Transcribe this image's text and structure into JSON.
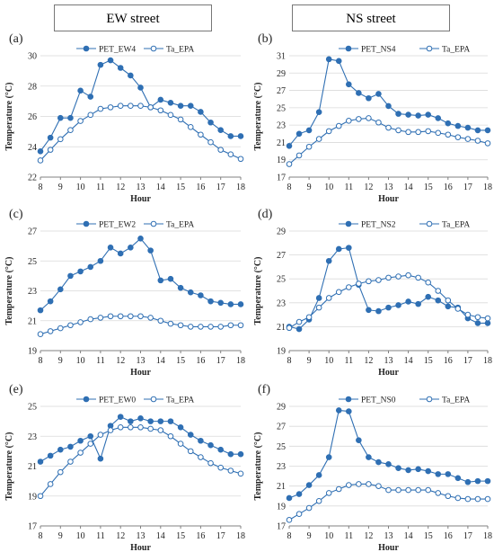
{
  "headers": {
    "left": "EW street",
    "right": "NS street"
  },
  "colors": {
    "series": "#2f6fb3",
    "axis": "#808080",
    "grid": "#d9d9d9",
    "text": "#222222"
  },
  "chart_data": [
    {
      "type": "line",
      "panel": "(a)",
      "xlabel": "Hour",
      "ylabel": "Temperature (°C)",
      "xlim": [
        8,
        18
      ],
      "ylim": [
        22,
        30
      ],
      "yticks": [
        22,
        24,
        26,
        28,
        30
      ],
      "xticks": [
        8,
        9,
        10,
        11,
        12,
        13,
        14,
        15,
        16,
        17,
        18
      ],
      "legend_placement": "top",
      "x": [
        8,
        8.5,
        9,
        9.5,
        10,
        10.5,
        11,
        11.5,
        12,
        12.5,
        13,
        13.5,
        14,
        14.5,
        15,
        15.5,
        16,
        16.5,
        17,
        17.5,
        18
      ],
      "series": [
        {
          "name": "PET_EW4",
          "marker": "filled",
          "values": [
            23.7,
            24.6,
            25.9,
            25.9,
            27.7,
            27.3,
            29.4,
            29.7,
            29.2,
            28.7,
            27.9,
            26.6,
            27.1,
            26.9,
            26.7,
            26.7,
            26.3,
            25.6,
            25.1,
            24.7,
            24.7
          ]
        },
        {
          "name": "Ta_EPA",
          "marker": "open",
          "values": [
            23.1,
            23.8,
            24.5,
            25.1,
            25.7,
            26.1,
            26.5,
            26.6,
            26.7,
            26.7,
            26.7,
            26.6,
            26.4,
            26.1,
            25.8,
            25.3,
            24.8,
            24.3,
            23.8,
            23.5,
            23.2
          ]
        }
      ]
    },
    {
      "type": "line",
      "panel": "(b)",
      "xlabel": "Hour",
      "ylabel": "Temperature (°C)",
      "xlim": [
        8,
        18
      ],
      "ylim": [
        17,
        31
      ],
      "yticks": [
        17,
        19,
        21,
        23,
        25,
        27,
        29,
        31
      ],
      "xticks": [
        8,
        9,
        10,
        11,
        12,
        13,
        14,
        15,
        16,
        17,
        18
      ],
      "legend_placement": "top",
      "x": [
        8,
        8.5,
        9,
        9.5,
        10,
        10.5,
        11,
        11.5,
        12,
        12.5,
        13,
        13.5,
        14,
        14.5,
        15,
        15.5,
        16,
        16.5,
        17,
        17.5,
        18
      ],
      "series": [
        {
          "name": "PET_NS4",
          "marker": "filled",
          "values": [
            20.6,
            22.0,
            22.4,
            24.5,
            30.6,
            30.4,
            27.7,
            26.7,
            26.1,
            26.6,
            25.2,
            24.3,
            24.2,
            24.1,
            24.2,
            23.8,
            23.2,
            22.9,
            22.7,
            22.4,
            22.4
          ]
        },
        {
          "name": "Ta_EPA",
          "marker": "open",
          "values": [
            18.5,
            19.5,
            20.5,
            21.4,
            22.3,
            22.9,
            23.5,
            23.7,
            23.8,
            23.3,
            22.7,
            22.4,
            22.2,
            22.2,
            22.3,
            22.1,
            21.9,
            21.6,
            21.4,
            21.2,
            20.9
          ]
        }
      ]
    },
    {
      "type": "line",
      "panel": "(c)",
      "xlabel": "Hour",
      "ylabel": "Temperature (°C)",
      "xlim": [
        8,
        18
      ],
      "ylim": [
        19,
        27
      ],
      "yticks": [
        19,
        21,
        23,
        25,
        27
      ],
      "xticks": [
        8,
        9,
        10,
        11,
        12,
        13,
        14,
        15,
        16,
        17,
        18
      ],
      "legend_placement": "top",
      "x": [
        8,
        8.5,
        9,
        9.5,
        10,
        10.5,
        11,
        11.5,
        12,
        12.5,
        13,
        13.5,
        14,
        14.5,
        15,
        15.5,
        16,
        16.5,
        17,
        17.5,
        18
      ],
      "series": [
        {
          "name": "PET_EW2",
          "marker": "filled",
          "values": [
            21.7,
            22.3,
            23.1,
            24.0,
            24.3,
            24.6,
            25.0,
            25.9,
            25.5,
            25.9,
            26.5,
            25.7,
            23.7,
            23.8,
            23.2,
            22.9,
            22.7,
            22.3,
            22.2,
            22.1,
            22.1
          ]
        },
        {
          "name": "Ta_EPA",
          "marker": "open",
          "values": [
            20.1,
            20.3,
            20.5,
            20.7,
            20.9,
            21.1,
            21.2,
            21.3,
            21.3,
            21.3,
            21.3,
            21.2,
            21.0,
            20.8,
            20.7,
            20.6,
            20.6,
            20.6,
            20.6,
            20.7,
            20.7
          ]
        }
      ]
    },
    {
      "type": "line",
      "panel": "(d)",
      "xlabel": "Hour",
      "ylabel": "Temperature (°C)",
      "xlim": [
        8,
        18
      ],
      "ylim": [
        19,
        29
      ],
      "yticks": [
        19,
        21,
        23,
        25,
        27,
        29
      ],
      "xticks": [
        8,
        9,
        10,
        11,
        12,
        13,
        14,
        15,
        16,
        17,
        18
      ],
      "legend_placement": "top",
      "x": [
        8,
        8.5,
        9,
        9.5,
        10,
        10.5,
        11,
        11.5,
        12,
        12.5,
        13,
        13.5,
        14,
        14.5,
        15,
        15.5,
        16,
        16.5,
        17,
        17.5,
        18
      ],
      "series": [
        {
          "name": "PET_NS2",
          "marker": "filled",
          "values": [
            21.0,
            20.8,
            21.6,
            23.4,
            26.5,
            27.5,
            27.6,
            24.5,
            22.4,
            22.3,
            22.6,
            22.8,
            23.1,
            22.9,
            23.5,
            23.2,
            22.7,
            22.6,
            21.7,
            21.3,
            21.3
          ]
        },
        {
          "name": "Ta_EPA",
          "marker": "open",
          "values": [
            20.9,
            21.4,
            21.8,
            22.6,
            23.4,
            23.9,
            24.3,
            24.6,
            24.8,
            24.9,
            25.1,
            25.2,
            25.3,
            25.1,
            24.7,
            24.0,
            23.2,
            22.5,
            22.0,
            21.8,
            21.7
          ]
        }
      ]
    },
    {
      "type": "line",
      "panel": "(e)",
      "xlabel": "Hour",
      "ylabel": "Temperature (°C)",
      "xlim": [
        8,
        18
      ],
      "ylim": [
        17,
        25
      ],
      "yticks": [
        17,
        19,
        21,
        23,
        25
      ],
      "xticks": [
        8,
        9,
        10,
        11,
        12,
        13,
        14,
        15,
        16,
        17,
        18
      ],
      "legend_placement": "top",
      "x": [
        8,
        8.5,
        9,
        9.5,
        10,
        10.5,
        11,
        11.5,
        12,
        12.5,
        13,
        13.5,
        14,
        14.5,
        15,
        15.5,
        16,
        16.5,
        17,
        17.5,
        18
      ],
      "series": [
        {
          "name": "PET_EW0",
          "marker": "filled",
          "values": [
            21.3,
            21.7,
            22.1,
            22.3,
            22.7,
            23.0,
            21.5,
            23.7,
            24.3,
            24.0,
            24.2,
            24.0,
            24.0,
            24.0,
            23.6,
            23.1,
            22.7,
            22.4,
            22.1,
            21.8,
            21.8
          ]
        },
        {
          "name": "Ta_EPA",
          "marker": "open",
          "values": [
            19.0,
            19.8,
            20.6,
            21.3,
            21.9,
            22.5,
            23.1,
            23.4,
            23.6,
            23.6,
            23.6,
            23.5,
            23.4,
            23.0,
            22.5,
            22.0,
            21.6,
            21.2,
            20.9,
            20.7,
            20.5
          ]
        }
      ]
    },
    {
      "type": "line",
      "panel": "(f)",
      "xlabel": "Hour",
      "ylabel": "Temperature (°C)",
      "xlim": [
        8,
        18
      ],
      "ylim": [
        17,
        29
      ],
      "yticks": [
        17,
        19,
        21,
        23,
        25,
        27,
        29
      ],
      "xticks": [
        8,
        9,
        10,
        11,
        12,
        13,
        14,
        15,
        16,
        17,
        18
      ],
      "legend_placement": "top",
      "x": [
        8,
        8.5,
        9,
        9.5,
        10,
        10.5,
        11,
        11.5,
        12,
        12.5,
        13,
        13.5,
        14,
        14.5,
        15,
        15.5,
        16,
        16.5,
        17,
        17.5,
        18
      ],
      "series": [
        {
          "name": "PET_NS0",
          "marker": "filled",
          "values": [
            19.8,
            20.2,
            21.1,
            22.1,
            23.9,
            28.6,
            28.5,
            25.6,
            23.9,
            23.4,
            23.2,
            22.8,
            22.6,
            22.7,
            22.5,
            22.2,
            22.2,
            21.8,
            21.4,
            21.5,
            21.5
          ]
        },
        {
          "name": "Ta_EPA",
          "marker": "open",
          "values": [
            17.6,
            18.2,
            18.8,
            19.5,
            20.3,
            20.7,
            21.1,
            21.2,
            21.2,
            21.0,
            20.6,
            20.6,
            20.6,
            20.6,
            20.6,
            20.3,
            20.0,
            19.8,
            19.7,
            19.7,
            19.7
          ]
        }
      ]
    }
  ]
}
